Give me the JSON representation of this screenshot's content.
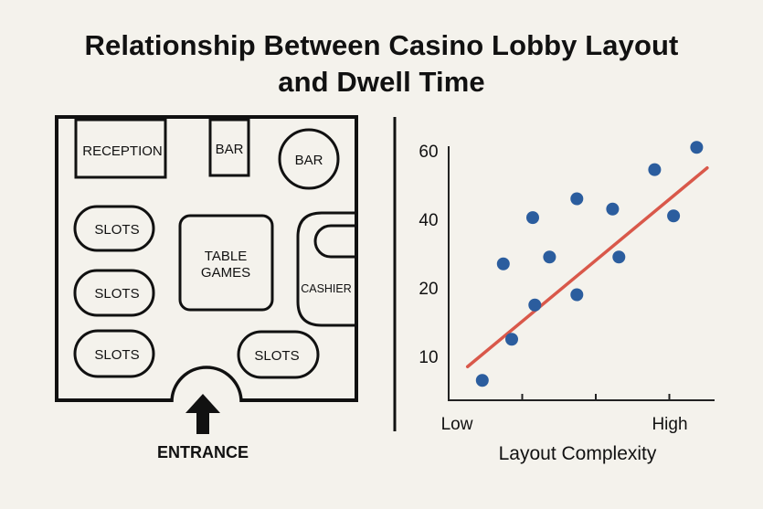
{
  "title": {
    "line1": "Relationship Between Casino Lobby Layout",
    "line2": "and Dwell Time"
  },
  "floor_plan": {
    "reception": "RECEPTION",
    "bar_small": "BAR",
    "bar_round": "BAR",
    "slots_1": "SLOTS",
    "slots_2": "SLOTS",
    "slots_3": "SLOTS",
    "slots_4": "SLOTS",
    "table_games_line1": "TABLE",
    "table_games_line2": "GAMES",
    "cashier": "CASHIER",
    "entrance": "ENTRANCE",
    "entrance_icon": "arrow-up-icon"
  },
  "chart_data": {
    "type": "scatter",
    "xlabel": "Layout Complexity",
    "x_tick_labels": [
      "Low",
      "High"
    ],
    "y_ticks": [
      10,
      20,
      40,
      60
    ],
    "y_tick_labels": [
      "10",
      "20",
      "40",
      "60"
    ],
    "points": [
      {
        "x": 0.16,
        "y": 6.5
      },
      {
        "x": 0.26,
        "y": 27
      },
      {
        "x": 0.3,
        "y": 12.5
      },
      {
        "x": 0.4,
        "y": 40.5
      },
      {
        "x": 0.41,
        "y": 17.5
      },
      {
        "x": 0.48,
        "y": 29
      },
      {
        "x": 0.61,
        "y": 46
      },
      {
        "x": 0.61,
        "y": 19
      },
      {
        "x": 0.78,
        "y": 43
      },
      {
        "x": 0.81,
        "y": 29
      },
      {
        "x": 0.98,
        "y": 54.5
      },
      {
        "x": 1.07,
        "y": 41
      },
      {
        "x": 1.18,
        "y": 61
      }
    ],
    "trend_line": {
      "x": [
        0.09,
        1.23
      ],
      "y": [
        8.5,
        55
      ]
    },
    "colors": {
      "points": "#2b5d9e",
      "trend": "#d9584a",
      "axis": "#222222"
    }
  }
}
